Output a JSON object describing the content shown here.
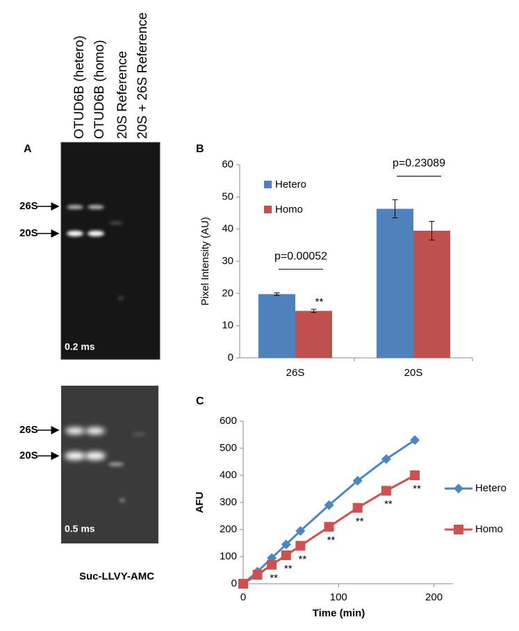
{
  "gel": {
    "panel_label": "A",
    "lanes": [
      "OTUD6B (hetero)",
      "OTUD6B (homo)",
      "20S Reference",
      "20S + 26S Reference"
    ],
    "bands": [
      "26S",
      "20S"
    ],
    "exposures": [
      "0.2 ms",
      "0.5 ms"
    ],
    "caption": "Suc-LLVY-AMC"
  },
  "chart_data": [
    {
      "type": "bar",
      "panel_label": "B",
      "ylabel": "Pixel Intensity (AU)",
      "categories": [
        "26S",
        "20S"
      ],
      "series": [
        {
          "name": "Hetero",
          "color": "#4f81bd",
          "values": [
            19.8,
            46.3
          ],
          "errors": [
            0.4,
            2.8
          ],
          "annotations": [
            null,
            null
          ]
        },
        {
          "name": "Homo",
          "color": "#c0504d",
          "values": [
            14.6,
            39.5
          ],
          "errors": [
            0.5,
            2.9
          ],
          "annotations": [
            "**",
            null
          ]
        }
      ],
      "p_values": [
        "p=0.00052",
        "p=0.23089"
      ],
      "ylim": [
        0,
        60
      ],
      "yticks": [
        0,
        10,
        20,
        30,
        40,
        50,
        60
      ],
      "legend": "upper left"
    },
    {
      "type": "line",
      "panel_label": "C",
      "xlabel": "Time (min)",
      "ylabel": "AFU",
      "x": [
        0,
        15,
        30,
        45,
        60,
        90,
        120,
        150,
        180
      ],
      "series": [
        {
          "name": "Hetero",
          "color": "#4a86c5",
          "marker": "diamond",
          "values": [
            0,
            45,
            95,
            145,
            195,
            290,
            380,
            460,
            530
          ],
          "annotations": [
            null,
            null,
            null,
            null,
            null,
            null,
            null,
            null,
            null
          ]
        },
        {
          "name": "Homo",
          "color": "#d0504d",
          "marker": "square",
          "values": [
            0,
            33,
            70,
            105,
            140,
            210,
            280,
            343,
            400
          ],
          "annotations": [
            null,
            null,
            "**",
            "**",
            "**",
            "**",
            "**",
            "**",
            "**"
          ]
        }
      ],
      "xlim": [
        0,
        220
      ],
      "xticks": [
        0,
        100,
        200
      ],
      "ylim": [
        0,
        600
      ],
      "yticks": [
        0,
        100,
        200,
        300,
        400,
        500,
        600
      ],
      "legend": "right"
    }
  ]
}
